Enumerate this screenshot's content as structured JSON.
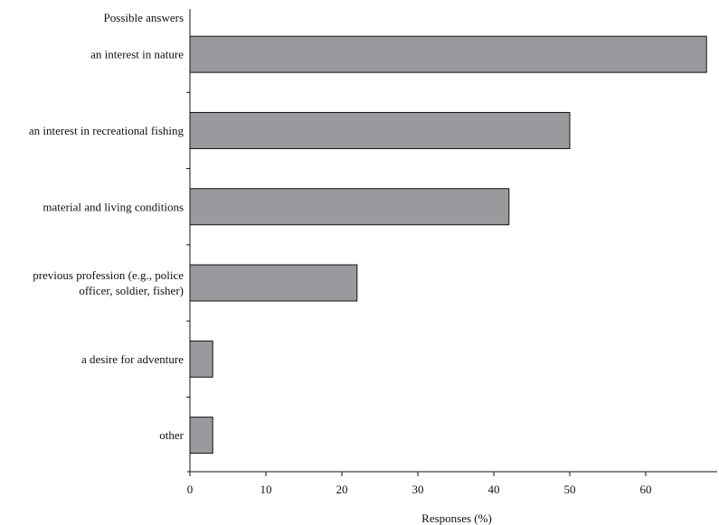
{
  "chart_data": {
    "type": "bar",
    "orientation": "horizontal",
    "category_header": "Possible answers",
    "categories": [
      [
        "an interest in nature"
      ],
      [
        "an interest in recreational fishing"
      ],
      [
        "material and living conditions"
      ],
      [
        "previous profession (e.g., police",
        "officer, soldier, fisher)"
      ],
      [
        "a desire for adventure"
      ],
      [
        "other"
      ]
    ],
    "values": [
      68,
      50,
      42,
      22,
      3,
      3
    ],
    "xlabel": "Responses (%)",
    "xlim": [
      0,
      70
    ],
    "xticks": [
      0,
      10,
      20,
      30,
      40,
      50,
      60
    ],
    "bar_color": "#999a9d",
    "grid": false
  }
}
